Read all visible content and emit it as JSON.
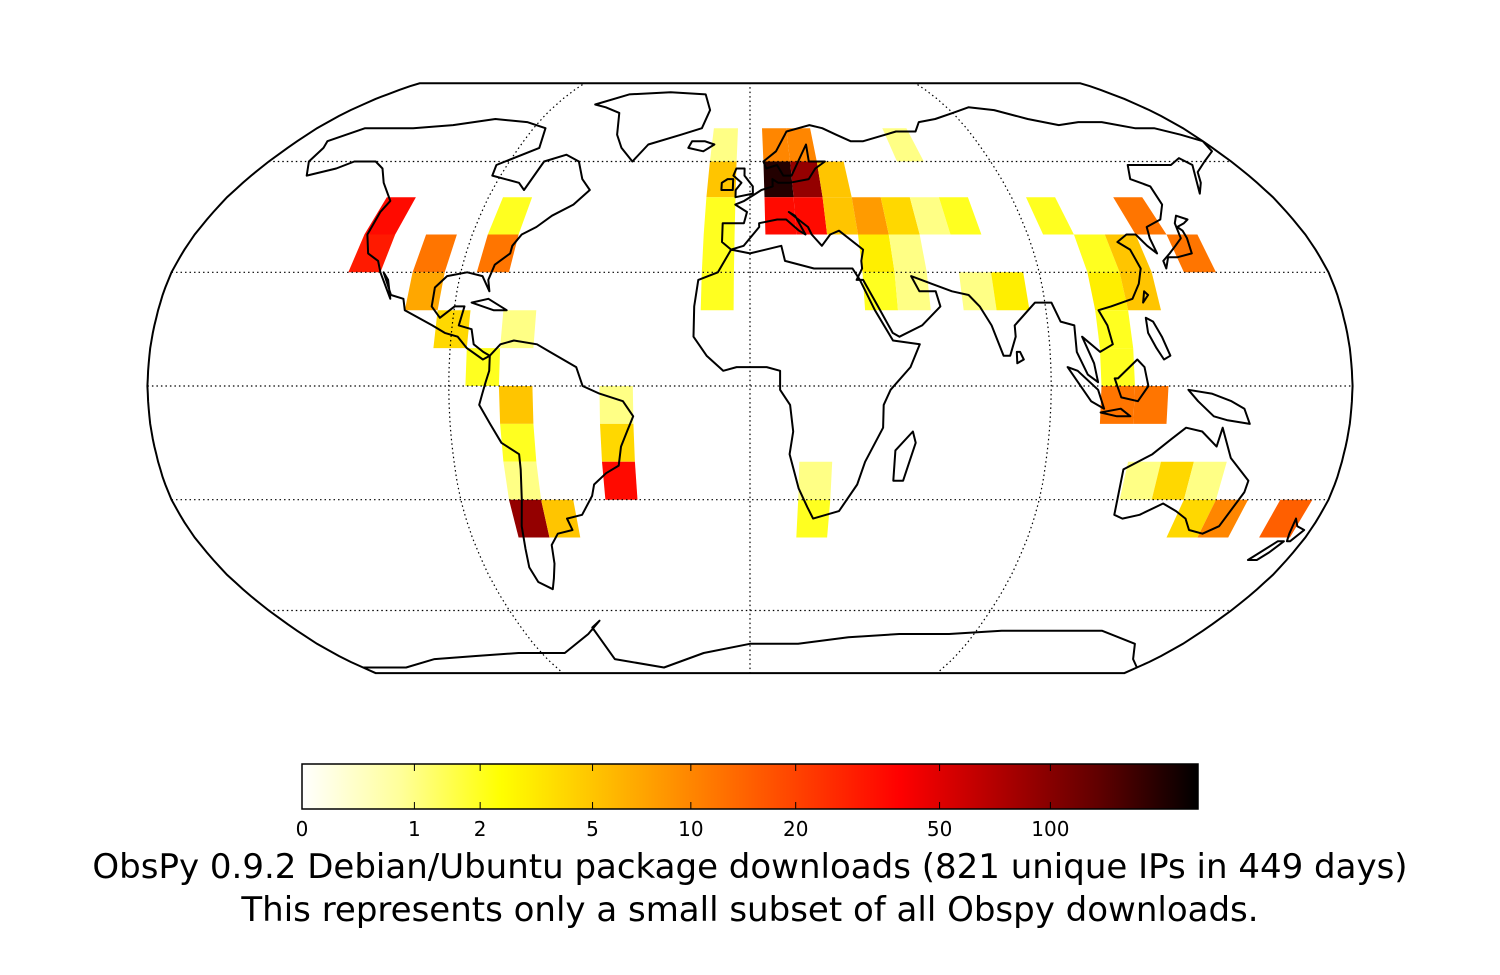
{
  "title_line1": "ObsPy 0.9.2 Debian/Ubuntu package downloads (821 unique IPs in 449 days)",
  "title_line2": "This represents only a small subset of all Obspy downloads.",
  "colorbar": {
    "ticks": [
      "0",
      "1",
      "2",
      "5",
      "10",
      "20",
      "50",
      "100"
    ],
    "colormap": "afmhot_r",
    "colors": [
      "#ffffff",
      "#ffff99",
      "#ffff00",
      "#ffc000",
      "#ff8000",
      "#ff4000",
      "#ff0000",
      "#b00000",
      "#600000",
      "#000000"
    ]
  },
  "chart_data": {
    "type": "heatmap",
    "projection": "Robinson",
    "gridlines": {
      "parallels_deg": [
        -60,
        -30,
        0,
        30,
        60
      ],
      "meridians_deg": [
        -90,
        0,
        90
      ],
      "style": "dotted"
    },
    "cell_size_deg": [
      10,
      10
    ],
    "cells": [
      {
        "region": "US Pacific Northwest",
        "lon": -120,
        "lat": 45,
        "value": 35
      },
      {
        "region": "US West Coast",
        "lon": -120,
        "lat": 35,
        "value": 30
      },
      {
        "region": "Canada East",
        "lon": -80,
        "lat": 45,
        "value": 2
      },
      {
        "region": "US Central",
        "lon": -100,
        "lat": 35,
        "value": 12
      },
      {
        "region": "US East",
        "lon": -80,
        "lat": 35,
        "value": 12
      },
      {
        "region": "Mexico / Gulf",
        "lon": -100,
        "lat": 25,
        "value": 7
      },
      {
        "region": "Central America",
        "lon": -90,
        "lat": 15,
        "value": 4
      },
      {
        "region": "Caribbean",
        "lon": -70,
        "lat": 15,
        "value": 1
      },
      {
        "region": "Colombia",
        "lon": -80,
        "lat": 5,
        "value": 2
      },
      {
        "region": "Andes North",
        "lon": -70,
        "lat": -5,
        "value": 5
      },
      {
        "region": "Peru",
        "lon": -70,
        "lat": -15,
        "value": 2
      },
      {
        "region": "Bolivia",
        "lon": -70,
        "lat": -25,
        "value": 1
      },
      {
        "region": "Brazil North",
        "lon": -40,
        "lat": -5,
        "value": 1
      },
      {
        "region": "Brazil East",
        "lon": -40,
        "lat": -15,
        "value": 4
      },
      {
        "region": "Brazil South",
        "lon": -40,
        "lat": -25,
        "value": 35
      },
      {
        "region": "Chile",
        "lon": -70,
        "lat": -35,
        "value": 90
      },
      {
        "region": "Argentina",
        "lon": -60,
        "lat": -35,
        "value": 5
      },
      {
        "region": "Iceland / Atlantic",
        "lon": -10,
        "lat": 65,
        "value": 1
      },
      {
        "region": "Ireland / UK",
        "lon": -10,
        "lat": 55,
        "value": 5
      },
      {
        "region": "Iberia",
        "lon": -10,
        "lat": 45,
        "value": 2
      },
      {
        "region": "Atlantic / Morocco",
        "lon": -10,
        "lat": 35,
        "value": 2
      },
      {
        "region": "Canary Islands",
        "lon": -10,
        "lat": 25,
        "value": 2
      },
      {
        "region": "Scandinavia West",
        "lon": 10,
        "lat": 65,
        "value": 10
      },
      {
        "region": "Scandinavia East",
        "lon": 20,
        "lat": 65,
        "value": 10
      },
      {
        "region": "Germany / Central Europe",
        "lon": 10,
        "lat": 55,
        "value": 200
      },
      {
        "region": "Eastern Europe",
        "lon": 20,
        "lat": 55,
        "value": 90
      },
      {
        "region": "Mediterranean West",
        "lon": 10,
        "lat": 45,
        "value": 35
      },
      {
        "region": "Mediterranean East",
        "lon": 20,
        "lat": 45,
        "value": 35
      },
      {
        "region": "Balkans / Greece",
        "lon": 30,
        "lat": 45,
        "value": 5
      },
      {
        "region": "Russia West",
        "lon": 30,
        "lat": 55,
        "value": 5
      },
      {
        "region": "Turkey",
        "lon": 40,
        "lat": 45,
        "value": 8
      },
      {
        "region": "Middle East",
        "lon": 40,
        "lat": 35,
        "value": 3
      },
      {
        "region": "Arabia",
        "lon": 40,
        "lat": 25,
        "value": 2
      },
      {
        "region": "Caspian",
        "lon": 50,
        "lat": 45,
        "value": 4
      },
      {
        "region": "Iran",
        "lon": 50,
        "lat": 35,
        "value": 1
      },
      {
        "region": "Persian Gulf",
        "lon": 50,
        "lat": 25,
        "value": 1
      },
      {
        "region": "Russia North",
        "lon": 60,
        "lat": 65,
        "value": 1
      },
      {
        "region": "Kazakhstan",
        "lon": 60,
        "lat": 45,
        "value": 1
      },
      {
        "region": "Central Asia",
        "lon": 70,
        "lat": 45,
        "value": 2
      },
      {
        "region": "Pakistan / India North",
        "lon": 70,
        "lat": 25,
        "value": 1
      },
      {
        "region": "India",
        "lon": 80,
        "lat": 25,
        "value": 3
      },
      {
        "region": "China West",
        "lon": 100,
        "lat": 45,
        "value": 2
      },
      {
        "region": "China Central",
        "lon": 110,
        "lat": 35,
        "value": 2
      },
      {
        "region": "China East",
        "lon": 120,
        "lat": 35,
        "value": 5
      },
      {
        "region": "Japan / Korea",
        "lon": 130,
        "lat": 45,
        "value": 12
      },
      {
        "region": "Japan South",
        "lon": 140,
        "lat": 35,
        "value": 12
      },
      {
        "region": "South China",
        "lon": 110,
        "lat": 25,
        "value": 3
      },
      {
        "region": "Taiwan",
        "lon": 120,
        "lat": 25,
        "value": 5
      },
      {
        "region": "Southeast Asia",
        "lon": 110,
        "lat": 15,
        "value": 2
      },
      {
        "region": "Malaysia / Borneo",
        "lon": 110,
        "lat": 5,
        "value": 2
      },
      {
        "region": "Indonesia",
        "lon": 110,
        "lat": -5,
        "value": 12
      },
      {
        "region": "Timor",
        "lon": 120,
        "lat": -5,
        "value": 12
      },
      {
        "region": "South Africa North",
        "lon": 20,
        "lat": -25,
        "value": 1
      },
      {
        "region": "South Africa",
        "lon": 20,
        "lat": -35,
        "value": 2
      },
      {
        "region": "Western Australia",
        "lon": 120,
        "lat": -25,
        "value": 1
      },
      {
        "region": "Australia Central",
        "lon": 130,
        "lat": -25,
        "value": 4
      },
      {
        "region": "Australia East",
        "lon": 140,
        "lat": -25,
        "value": 1
      },
      {
        "region": "Southern Australia",
        "lon": 140,
        "lat": -35,
        "value": 4
      },
      {
        "region": "Southeast Australia",
        "lon": 150,
        "lat": -35,
        "value": 10
      },
      {
        "region": "New Zealand",
        "lon": 170,
        "lat": -35,
        "value": 15
      }
    ]
  }
}
